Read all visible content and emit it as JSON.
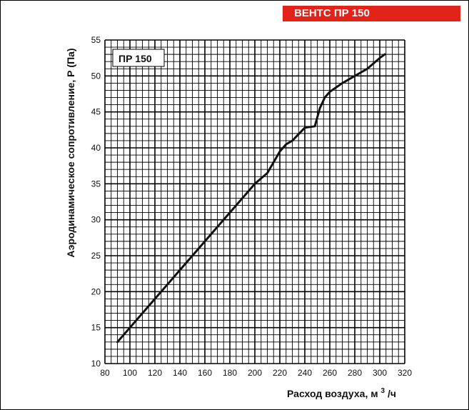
{
  "brand": "ВЕНТС ПР 150",
  "colors": {
    "brand_red": "#e2231a",
    "curve": "#111111",
    "grid": "#000000"
  },
  "chart_data": {
    "type": "line",
    "model_label": "ПР 150",
    "xlabel": "Расход воздуха,  м",
    "xlabel_sup": "3",
    "xlabel_tail": "/ч",
    "ylabel": "Аэродинамическое сопротивление, Р (Па)",
    "xlim": [
      80,
      320
    ],
    "ylim": [
      10,
      55
    ],
    "x_ticks": [
      80,
      100,
      120,
      140,
      160,
      180,
      200,
      220,
      240,
      260,
      280,
      300,
      320
    ],
    "y_ticks": [
      10,
      15,
      20,
      25,
      30,
      35,
      40,
      45,
      50,
      55
    ],
    "x_minor_step": 5,
    "y_minor_step": 1,
    "grid": true,
    "series": [
      {
        "x": [
          90,
          100,
          110,
          120,
          130,
          140,
          150,
          160,
          170,
          180,
          190,
          200,
          210,
          215,
          220,
          225,
          230,
          240,
          248,
          252,
          256,
          260,
          270,
          280,
          290,
          300,
          304
        ],
        "y": [
          13,
          15,
          17,
          19,
          21,
          23,
          25,
          27,
          29,
          31,
          33,
          35,
          36.5,
          38,
          39.5,
          40.5,
          41,
          42.8,
          43,
          45.5,
          47,
          47.8,
          49,
          50,
          51,
          52.5,
          53
        ]
      }
    ]
  }
}
